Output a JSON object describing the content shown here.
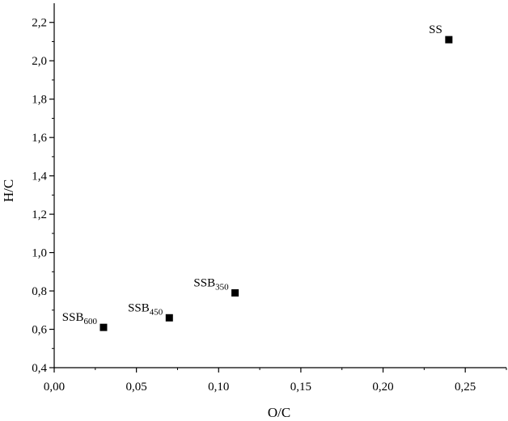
{
  "chart_data": {
    "type": "scatter",
    "title": "",
    "xlabel": "O/C",
    "ylabel": "H/C",
    "xlim": [
      0.0,
      0.275
    ],
    "ylim": [
      0.4,
      2.3
    ],
    "grid": false,
    "x_ticks": [
      {
        "value": 0.0,
        "label": "0,00"
      },
      {
        "value": 0.05,
        "label": "0,05"
      },
      {
        "value": 0.1,
        "label": "0,10"
      },
      {
        "value": 0.15,
        "label": "0,15"
      },
      {
        "value": 0.2,
        "label": "0,20"
      },
      {
        "value": 0.25,
        "label": "0,25"
      }
    ],
    "y_ticks": [
      {
        "value": 0.4,
        "label": "0,4"
      },
      {
        "value": 0.6,
        "label": "0,6"
      },
      {
        "value": 0.8,
        "label": "0,8"
      },
      {
        "value": 1.0,
        "label": "1,0"
      },
      {
        "value": 1.2,
        "label": "1,2"
      },
      {
        "value": 1.4,
        "label": "1,4"
      },
      {
        "value": 1.6,
        "label": "1,6"
      },
      {
        "value": 1.8,
        "label": "1,8"
      },
      {
        "value": 2.0,
        "label": "2,0"
      },
      {
        "value": 2.2,
        "label": "2,2"
      }
    ],
    "points": [
      {
        "x": 0.03,
        "y": 0.61,
        "label": "SSB",
        "sub": "600"
      },
      {
        "x": 0.07,
        "y": 0.66,
        "label": "SSB",
        "sub": "450"
      },
      {
        "x": 0.11,
        "y": 0.79,
        "label": "SSB",
        "sub": "350"
      },
      {
        "x": 0.24,
        "y": 2.11,
        "label": "SS",
        "sub": ""
      }
    ],
    "marker": "square",
    "marker_color": "#000000"
  }
}
